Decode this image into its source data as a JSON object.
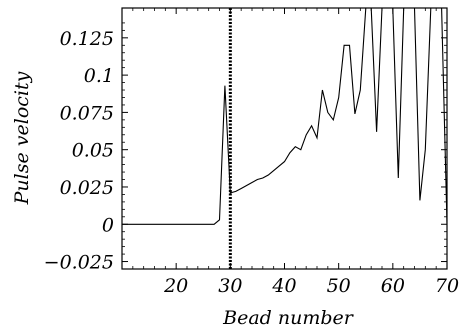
{
  "chart_data": {
    "type": "line",
    "title": "",
    "xlabel": "Bead number",
    "ylabel": "Pulse velocity",
    "xlim": [
      10,
      70
    ],
    "ylim": [
      -0.03,
      0.145
    ],
    "x_ticks": [
      20,
      30,
      40,
      50,
      60,
      70
    ],
    "x_tick_labels": [
      "20",
      "30",
      "40",
      "50",
      "60",
      "70"
    ],
    "y_ticks": [
      -0.025,
      0,
      0.025,
      0.05,
      0.075,
      0.1,
      0.125
    ],
    "y_tick_labels": [
      "−0.025",
      "0",
      "0.025",
      "0.05",
      "0.075",
      "0.1",
      "0.125"
    ],
    "vertical_marker_x": 30,
    "series": [
      {
        "x": [
          10,
          27,
          28,
          29,
          30,
          31,
          32,
          33,
          34,
          35,
          36,
          37,
          38,
          39,
          40,
          41,
          42,
          43,
          44,
          45,
          46,
          47,
          48,
          49,
          50,
          51,
          52,
          53,
          54,
          55,
          56,
          57,
          58,
          59,
          60,
          61,
          62,
          63,
          64,
          65,
          66,
          67,
          68,
          69,
          70
        ],
        "y": [
          0,
          0,
          0.003,
          0.093,
          0.021,
          0.022,
          0.024,
          0.026,
          0.028,
          0.03,
          0.031,
          0.033,
          0.036,
          0.039,
          0.042,
          0.048,
          0.052,
          0.05,
          0.06,
          0.066,
          0.058,
          0.09,
          0.075,
          0.07,
          0.085,
          0.12,
          0.12,
          0.074,
          0.09,
          0.145,
          0.145,
          0.062,
          0.145,
          0.145,
          0.145,
          0.031,
          0.145,
          0.145,
          0.145,
          0.016,
          0.05,
          0.145,
          0.145,
          0.145,
          0.0
        ]
      }
    ]
  }
}
